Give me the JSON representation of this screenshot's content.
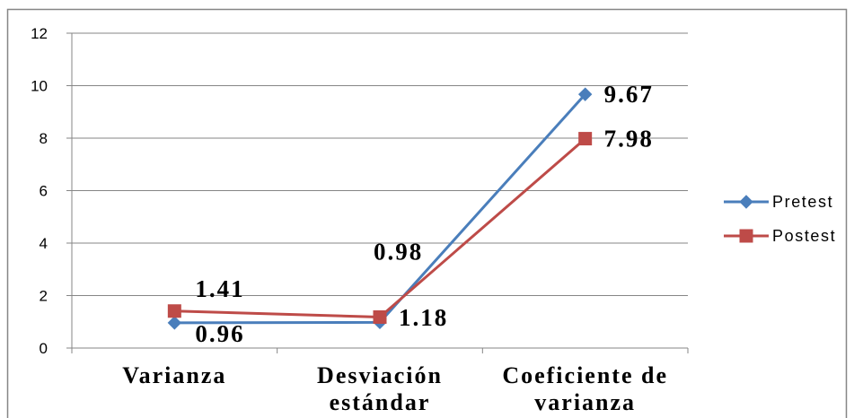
{
  "chart_data": {
    "type": "line",
    "categories": [
      "Varianza",
      "Desviación estándar",
      "Coeficiente de varianza"
    ],
    "series": [
      {
        "name": "Pretest",
        "values": [
          0.96,
          0.98,
          9.67
        ],
        "color": "#4A7EBB",
        "marker": "diamond"
      },
      {
        "name": "Postest",
        "values": [
          1.41,
          1.18,
          7.98
        ],
        "color": "#BE4B48",
        "marker": "square"
      }
    ],
    "ylim": [
      0,
      12
    ],
    "yticks": [
      0,
      2,
      4,
      6,
      8,
      10,
      12
    ],
    "grid": true,
    "legend": "right",
    "data_labels": true,
    "colors": {
      "grid": "#868686",
      "axis": "#868686",
      "border": "#868686"
    }
  }
}
